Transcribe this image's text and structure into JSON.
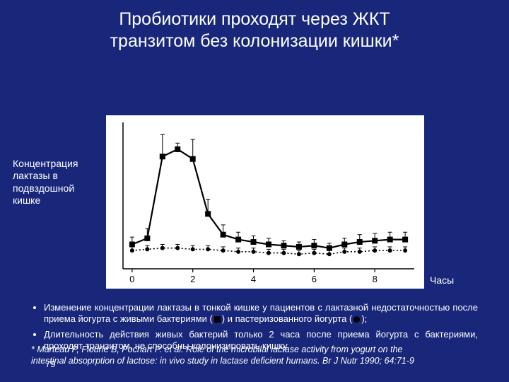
{
  "title_line1": "Пробиотики проходят через ЖКТ",
  "title_line2": "транзитом без колонизации кишки*",
  "ylabel": "Концентрация лактазы в подвздошной кишке",
  "xlabel": "Часы",
  "chart": {
    "type": "line",
    "background_color": "#ffffff",
    "axis_color": "#000000",
    "xlim": [
      -0.3,
      9.3
    ],
    "ylim": [
      0,
      120
    ],
    "xticks": [
      0,
      2,
      4,
      6,
      8
    ],
    "xtick_fontsize": 13,
    "series": [
      {
        "name": "live",
        "marker": "square",
        "marker_size": 8,
        "line_width": 2.2,
        "line_style": "solid",
        "color": "#000000",
        "x": [
          0,
          0.5,
          1,
          1.5,
          2,
          2.5,
          3,
          3.5,
          4,
          4.5,
          5,
          5.5,
          6,
          6.5,
          7,
          7.5,
          8,
          8.5,
          9
        ],
        "y": [
          20,
          25,
          92,
          98,
          90,
          45,
          28,
          24,
          22,
          20,
          19,
          18,
          19,
          17,
          20,
          22,
          23,
          24,
          24
        ],
        "err": [
          6,
          8,
          18,
          5,
          16,
          12,
          8,
          6,
          5,
          5,
          4,
          4,
          5,
          4,
          5,
          6,
          6,
          6,
          6
        ]
      },
      {
        "name": "pasteurized",
        "marker": "circle",
        "marker_size": 6,
        "line_width": 1.6,
        "line_style": "dotted",
        "color": "#000000",
        "x": [
          0,
          0.5,
          1,
          1.5,
          2,
          2.5,
          3,
          3.5,
          4,
          4.5,
          5,
          5.5,
          6,
          6.5,
          7,
          7.5,
          8,
          8.5,
          9
        ],
        "y": [
          15,
          16,
          17,
          17,
          16,
          16,
          15,
          14,
          14,
          13,
          13,
          12,
          13,
          12,
          14,
          14,
          15,
          15,
          15
        ],
        "err": [
          3,
          3,
          3,
          3,
          3,
          3,
          3,
          3,
          3,
          3,
          3,
          3,
          3,
          3,
          3,
          3,
          3,
          3,
          3
        ]
      }
    ]
  },
  "bullet1_a": "Изменение концентрации лактазы в тонкой кишке у пациентов с лактазной недостаточностью  после приема йогурта с живыми бактериями (",
  "bullet1_b": ") и пастеризованного йогурта (",
  "bullet1_c": ");",
  "bullet2": "Длительность действия живых бактерий только 2 часа после приема йогурта с бактериями, проходят транзитом, не способны колонизировать кишку",
  "citation": "* Marteau P, Flourie B, Pochart P. et al. Role of the microbilal lactase activity from yogurt on the intestinal absoprption of lactose: in vivo study in lactase deficient humans. Br J Nutr 1990; 64:71-9",
  "page_number": "79"
}
